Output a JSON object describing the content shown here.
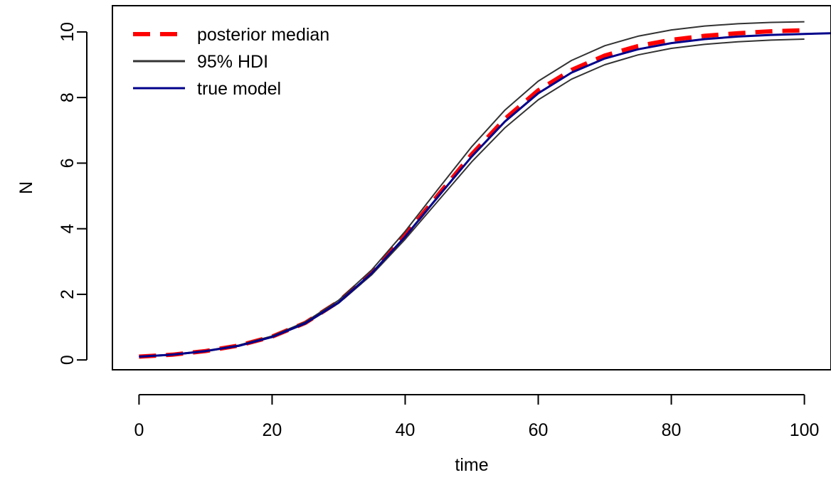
{
  "chart_data": {
    "type": "line",
    "title": "",
    "xlabel": "time",
    "ylabel": "N",
    "xlim": [
      -4,
      104
    ],
    "ylim": [
      -0.3,
      10.8
    ],
    "x_ticks": [
      0,
      20,
      40,
      60,
      80,
      100
    ],
    "y_ticks": [
      0,
      2,
      4,
      6,
      8,
      10
    ],
    "x_tick_labels": [
      "0",
      "20",
      "40",
      "60",
      "80",
      "100"
    ],
    "y_tick_labels": [
      "0",
      "2",
      "4",
      "6",
      "8",
      "10"
    ],
    "grid": false,
    "legend_position": "top-left",
    "series": [
      {
        "name": "posterior median",
        "color": "#ff0000",
        "style": "dashed",
        "x": [
          0,
          5,
          10,
          15,
          20,
          25,
          30,
          35,
          40,
          45,
          50,
          55,
          60,
          65,
          70,
          75,
          80,
          85,
          90,
          95,
          100
        ],
        "y": [
          0.1,
          0.16,
          0.27,
          0.44,
          0.71,
          1.13,
          1.78,
          2.68,
          3.8,
          5.04,
          6.27,
          7.35,
          8.22,
          8.84,
          9.28,
          9.57,
          9.76,
          9.88,
          9.96,
          10.02,
          10.05
        ]
      },
      {
        "name": "95% HDI",
        "color": "#333333",
        "style": "solid",
        "x": [
          0,
          5,
          10,
          15,
          20,
          25,
          30,
          35,
          40,
          45,
          50,
          55,
          60,
          65,
          70,
          75,
          80,
          85,
          90,
          95,
          100
        ],
        "y": [
          0.11,
          0.17,
          0.28,
          0.45,
          0.73,
          1.16,
          1.82,
          2.75,
          3.92,
          5.22,
          6.5,
          7.62,
          8.5,
          9.13,
          9.58,
          9.87,
          10.06,
          10.18,
          10.25,
          10.29,
          10.31
        ]
      },
      {
        "name": "",
        "color": "#333333",
        "style": "solid",
        "x": [
          0,
          5,
          10,
          15,
          20,
          25,
          30,
          35,
          40,
          45,
          50,
          55,
          60,
          65,
          70,
          75,
          80,
          85,
          90,
          95,
          100
        ],
        "y": [
          0.09,
          0.15,
          0.26,
          0.42,
          0.69,
          1.1,
          1.73,
          2.6,
          3.68,
          4.86,
          6.04,
          7.08,
          7.93,
          8.56,
          9.0,
          9.3,
          9.5,
          9.62,
          9.7,
          9.75,
          9.78
        ]
      },
      {
        "name": "true model",
        "color": "#00008b",
        "style": "solid",
        "x": [
          0,
          5,
          10,
          15,
          20,
          25,
          30,
          35,
          40,
          45,
          50,
          55,
          60,
          65,
          70,
          75,
          80,
          85,
          90,
          95,
          100,
          104
        ],
        "y": [
          0.1,
          0.16,
          0.27,
          0.43,
          0.7,
          1.12,
          1.75,
          2.65,
          3.76,
          4.99,
          6.2,
          7.27,
          8.13,
          8.76,
          9.19,
          9.47,
          9.66,
          9.78,
          9.86,
          9.91,
          9.94,
          9.96
        ]
      }
    ]
  }
}
